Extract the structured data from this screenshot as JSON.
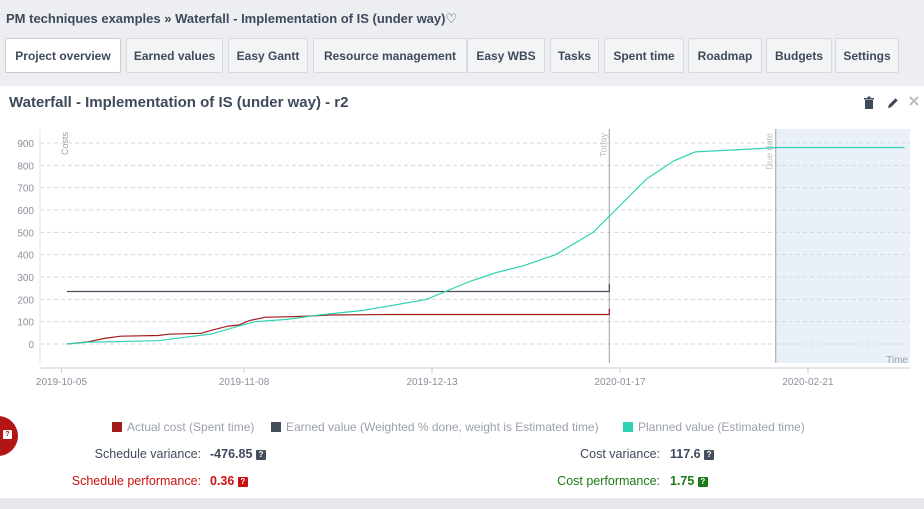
{
  "breadcrumb": {
    "project": "PM techniques examples",
    "separator": " » ",
    "page": "Waterfall - Implementation of IS (under way)",
    "heart": "♡"
  },
  "tabs": [
    {
      "label": "Project overview",
      "active": true
    },
    {
      "label": "Earned values"
    },
    {
      "label": "Easy Gantt"
    },
    {
      "label": "Resource management"
    },
    {
      "label": "Easy WBS"
    },
    {
      "label": "Tasks"
    },
    {
      "label": "Spent time"
    },
    {
      "label": "Roadmap"
    },
    {
      "label": "Budgets"
    },
    {
      "label": "Settings"
    }
  ],
  "panel": {
    "title": "Waterfall - Implementation of IS (under way) - r2",
    "icons": [
      "trash-icon",
      "pencil-icon",
      "close-icon"
    ]
  },
  "colors": {
    "actual": "#a31b1b",
    "earned": "#454f5c",
    "planned": "#2ed3b3",
    "future_band": "#eaf0f8"
  },
  "chart_data": {
    "type": "line",
    "ylabel": "Costs",
    "xlabel": "Time",
    "ylim": [
      -100,
      1000
    ],
    "yticks": [
      0,
      100,
      200,
      300,
      400,
      500,
      600,
      700,
      800,
      900
    ],
    "xticks": [
      "2019-10-05",
      "2019-11-08",
      "2019-12-13",
      "2020-01-17",
      "2020-02-21"
    ],
    "x_range": [
      "2019-10-01",
      "2020-03-11"
    ],
    "markers": [
      {
        "label": "Today",
        "date": "2020-01-15"
      },
      {
        "label": "Due date",
        "date": "2020-02-15"
      }
    ],
    "grid": true,
    "legend_position": "bottom",
    "series": [
      {
        "name": "Actual cost (Spent time)",
        "points": [
          [
            "2019-10-06",
            0
          ],
          [
            "2019-10-10",
            10
          ],
          [
            "2019-10-13",
            25
          ],
          [
            "2019-10-16",
            35
          ],
          [
            "2019-10-23",
            38
          ],
          [
            "2019-10-25",
            44
          ],
          [
            "2019-10-31",
            48
          ],
          [
            "2019-11-02",
            62
          ],
          [
            "2019-11-05",
            80
          ],
          [
            "2019-11-07",
            85
          ],
          [
            "2019-11-09",
            105
          ],
          [
            "2019-11-12",
            120
          ],
          [
            "2019-11-16",
            122
          ],
          [
            "2019-11-20",
            125
          ],
          [
            "2019-11-24",
            130
          ],
          [
            "2019-12-05",
            132
          ],
          [
            "2020-01-15",
            132
          ],
          [
            "2020-01-15",
            158
          ]
        ]
      },
      {
        "name": "Earned value (Weighted % done, weight is Estimated time)",
        "points": [
          [
            "2019-10-06",
            235
          ],
          [
            "2020-01-15",
            235
          ],
          [
            "2020-01-15",
            270
          ]
        ]
      },
      {
        "name": "Planned value (Estimated time)",
        "points": [
          [
            "2019-10-06",
            0
          ],
          [
            "2019-10-10",
            8
          ],
          [
            "2019-10-18",
            12
          ],
          [
            "2019-10-23",
            15
          ],
          [
            "2019-11-02",
            45
          ],
          [
            "2019-11-07",
            80
          ],
          [
            "2019-11-10",
            100
          ],
          [
            "2019-11-16",
            110
          ],
          [
            "2019-11-22",
            130
          ],
          [
            "2019-11-30",
            150
          ],
          [
            "2019-12-05",
            170
          ],
          [
            "2019-12-12",
            200
          ],
          [
            "2019-12-20",
            280
          ],
          [
            "2019-12-25",
            320
          ],
          [
            "2019-12-30",
            350
          ],
          [
            "2020-01-05",
            400
          ],
          [
            "2020-01-12",
            500
          ],
          [
            "2020-01-17",
            620
          ],
          [
            "2020-01-22",
            740
          ],
          [
            "2020-01-27",
            820
          ],
          [
            "2020-01-31",
            860
          ],
          [
            "2020-02-12",
            875
          ],
          [
            "2020-02-15",
            880
          ],
          [
            "2020-03-10",
            880
          ]
        ]
      }
    ]
  },
  "stats": {
    "schedule_variance": {
      "label": "Schedule variance:",
      "value": "-476.85"
    },
    "cost_variance": {
      "label": "Cost variance:",
      "value": "117.6"
    },
    "schedule_performance": {
      "label": "Schedule performance:",
      "value": "0.36"
    },
    "cost_performance": {
      "label": "Cost performance:",
      "value": "1.75"
    },
    "help_glyph": "?"
  }
}
